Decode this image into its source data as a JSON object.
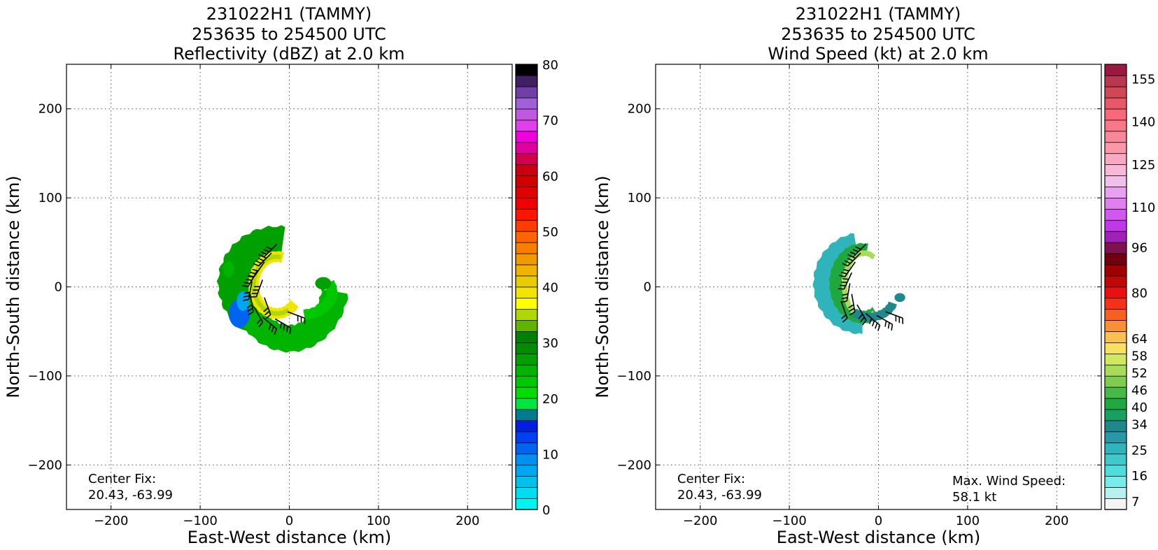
{
  "chart_data": [
    {
      "type": "heatmap",
      "title": [
        "231022H1 (TAMMY)",
        "253635 to 254500 UTC",
        "Reflectivity (dBZ) at 2.0 km"
      ],
      "xlabel": "East-West distance (km)",
      "ylabel": "North-South distance (km)",
      "xlim": [
        -250,
        250
      ],
      "ylim": [
        -250,
        250
      ],
      "xticks": [
        -200,
        -100,
        0,
        100,
        200
      ],
      "yticks": [
        -200,
        -100,
        0,
        100,
        200
      ],
      "grid": true,
      "annotation": [
        "Center Fix:",
        "20.43, -63.99"
      ],
      "colorbar": {
        "range": [
          0,
          80
        ],
        "tick_values": [
          0,
          10,
          20,
          30,
          40,
          50,
          60,
          70,
          80
        ],
        "tick_labels": [
          "0",
          "10",
          "20",
          "30",
          "40",
          "50",
          "60",
          "70",
          "80"
        ],
        "colors": [
          "#00f5f0",
          "#00dcf0",
          "#00c0f0",
          "#00a6f0",
          "#0090f0",
          "#0064f0",
          "#0040f0",
          "#0020e0",
          "#007c8c",
          "#00e440",
          "#00dc00",
          "#00c800",
          "#00b400",
          "#00a000",
          "#008c00",
          "#008000",
          "#60b400",
          "#b0d800",
          "#ffff00",
          "#f0e400",
          "#e8cc00",
          "#f0b400",
          "#f09a00",
          "#f87e00",
          "#ff6400",
          "#ff3c00",
          "#ff1400",
          "#f00000",
          "#e00000",
          "#d00000",
          "#c80010",
          "#d0004c",
          "#e000a0",
          "#f000dc",
          "#e040ec",
          "#c058e0",
          "#a060d8",
          "#7040a8",
          "#402060",
          "#000000"
        ]
      },
      "echo_fields": [
        {
          "name": "north-arc",
          "level_dbz": 26,
          "cx": -14,
          "cy": 4,
          "rx": 48,
          "ry": 46,
          "start_deg": 82,
          "end_deg": 250,
          "width_km": 36
        },
        {
          "name": "south-arc",
          "level_dbz": 24,
          "cx": 0,
          "cy": 6,
          "rx": 52,
          "ry": 64,
          "start_deg": 200,
          "end_deg": 350,
          "width_km": 30
        },
        {
          "name": "east-tail",
          "level_dbz": 22,
          "cx": 10,
          "cy": -6,
          "rx": 38,
          "ry": 26,
          "start_deg": 280,
          "end_deg": 385,
          "width_km": 12
        },
        {
          "name": "inner-eyewall",
          "level_dbz": 38,
          "cx": -14,
          "cy": 2,
          "rx": 26,
          "ry": 32,
          "start_deg": 75,
          "end_deg": 320,
          "width_km": 12
        },
        {
          "name": "inner-core",
          "level_dbz": 34,
          "cx": -14,
          "cy": 2,
          "rx": 26,
          "ry": 32,
          "start_deg": 80,
          "end_deg": 300,
          "width_km": 5
        },
        {
          "name": "blue-patch",
          "level_dbz": 10,
          "cx": -56,
          "cy": -30,
          "rx": 8,
          "ry": 12,
          "start_deg": 0,
          "end_deg": 360,
          "width_km": 8
        },
        {
          "name": "cyan-patch",
          "level_dbz": 7,
          "cx": -52,
          "cy": -16,
          "rx": 4,
          "ry": 8,
          "start_deg": 0,
          "end_deg": 360,
          "width_km": 6
        },
        {
          "name": "northwest-cell",
          "level_dbz": 24,
          "cx": -68,
          "cy": 20,
          "rx": 3,
          "ry": 6,
          "start_deg": 0,
          "end_deg": 360,
          "width_km": 6
        },
        {
          "name": "east-cell",
          "level_dbz": 26,
          "cx": 38,
          "cy": 4,
          "rx": 6,
          "ry": 4,
          "start_deg": 0,
          "end_deg": 360,
          "width_km": 6
        }
      ],
      "barbs": [
        {
          "x": -14,
          "y": 48,
          "dir": 225,
          "flags": 4
        },
        {
          "x": -20,
          "y": 38,
          "dir": 225,
          "flags": 4
        },
        {
          "x": -28,
          "y": 28,
          "dir": 215,
          "flags": 3
        },
        {
          "x": -36,
          "y": 18,
          "dir": 210,
          "flags": 4
        },
        {
          "x": -42,
          "y": 6,
          "dir": 190,
          "flags": 3
        },
        {
          "x": -44,
          "y": -8,
          "dir": 170,
          "flags": 3
        },
        {
          "x": -40,
          "y": -22,
          "dir": 150,
          "flags": 2
        },
        {
          "x": -30,
          "y": -34,
          "dir": 130,
          "flags": 3
        },
        {
          "x": -16,
          "y": -36,
          "dir": 120,
          "flags": 4
        },
        {
          "x": -2,
          "y": -28,
          "dir": 110,
          "flags": 3
        },
        {
          "x": -28,
          "y": -12,
          "dir": 160,
          "flags": 3
        },
        {
          "x": -30,
          "y": 8,
          "dir": 200,
          "flags": 4
        }
      ]
    },
    {
      "type": "heatmap",
      "title": [
        "231022H1 (TAMMY)",
        "253635 to 254500 UTC",
        "Wind Speed (kt) at 2.0 km"
      ],
      "xlabel": "East-West distance (km)",
      "ylabel": "North-South distance (km)",
      "xlim": [
        -250,
        250
      ],
      "ylim": [
        -250,
        250
      ],
      "xticks": [
        -200,
        -100,
        0,
        100,
        200
      ],
      "yticks": [
        -200,
        -100,
        0,
        100,
        200
      ],
      "grid": true,
      "annotation": [
        "Center Fix:",
        "20.43, -63.99"
      ],
      "annotation_right": [
        "Max. Wind Speed:",
        "58.1 kt"
      ],
      "colorbar": {
        "range": [
          4,
          160
        ],
        "tick_values": [
          7,
          16,
          25,
          34,
          40,
          46,
          52,
          58,
          64,
          80,
          96,
          110,
          125,
          140,
          155
        ],
        "tick_labels": [
          "7",
          "16",
          "25",
          "34",
          "40",
          "46",
          "52",
          "58",
          "64",
          "80",
          "96",
          "110",
          "125",
          "140",
          "155"
        ],
        "colors": [
          "#f4f4f4",
          "#b8f0f0",
          "#78ece8",
          "#50dcdc",
          "#40c8cc",
          "#30b4bc",
          "#2898a8",
          "#20888c",
          "#18a060",
          "#20a840",
          "#48b848",
          "#80cc50",
          "#a8dc58",
          "#d0e860",
          "#f8e060",
          "#f8c050",
          "#f89038",
          "#f86020",
          "#f83018",
          "#e81010",
          "#c00808",
          "#a00000",
          "#700010",
          "#801050",
          "#a020b8",
          "#c038e8",
          "#d058f0",
          "#e080f0",
          "#e8a0f0",
          "#f0c0e8",
          "#f8b8d8",
          "#f8a8c0",
          "#f898a8",
          "#f88898",
          "#f87888",
          "#f86878",
          "#e85868",
          "#d04858",
          "#b83850",
          "#9c1840"
        ]
      },
      "echo_fields": [
        {
          "name": "outer-arc",
          "level_kt": 24,
          "cx": -18,
          "cy": 4,
          "rx": 42,
          "ry": 44,
          "start_deg": 100,
          "end_deg": 270,
          "width_km": 26
        },
        {
          "name": "mid-arc",
          "level_kt": 40,
          "cx": -18,
          "cy": 4,
          "rx": 30,
          "ry": 38,
          "start_deg": 80,
          "end_deg": 300,
          "width_km": 14
        },
        {
          "name": "inner-arc",
          "level_kt": 52,
          "cx": -16,
          "cy": 2,
          "rx": 22,
          "ry": 36,
          "start_deg": 60,
          "end_deg": 300,
          "width_km": 6
        },
        {
          "name": "south-tail",
          "level_kt": 34,
          "cx": -10,
          "cy": -10,
          "rx": 28,
          "ry": 24,
          "start_deg": 230,
          "end_deg": 340,
          "width_km": 10
        },
        {
          "name": "east-cell",
          "level_kt": 32,
          "cx": 24,
          "cy": -12,
          "rx": 4,
          "ry": 3,
          "start_deg": 0,
          "end_deg": 360,
          "width_km": 4
        }
      ],
      "barbs": [
        {
          "x": -14,
          "y": 48,
          "dir": 225,
          "flags": 4
        },
        {
          "x": -20,
          "y": 38,
          "dir": 225,
          "flags": 4
        },
        {
          "x": -26,
          "y": 28,
          "dir": 215,
          "flags": 3
        },
        {
          "x": -30,
          "y": 16,
          "dir": 205,
          "flags": 4
        },
        {
          "x": -32,
          "y": 4,
          "dir": 190,
          "flags": 3
        },
        {
          "x": -30,
          "y": -8,
          "dir": 170,
          "flags": 3
        },
        {
          "x": -24,
          "y": -20,
          "dir": 150,
          "flags": 3
        },
        {
          "x": -14,
          "y": -30,
          "dir": 130,
          "flags": 4
        },
        {
          "x": -2,
          "y": -32,
          "dir": 120,
          "flags": 3
        },
        {
          "x": 8,
          "y": -28,
          "dir": 110,
          "flags": 3
        },
        {
          "x": -42,
          "y": -16,
          "dir": 160,
          "flags": 2
        }
      ]
    }
  ]
}
